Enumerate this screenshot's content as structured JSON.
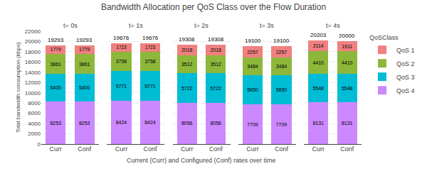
{
  "title": "Bandwidth Allocation per QoS Class over the Flow Duration",
  "xlabel": "Current (Curr) and Configured (Conf) rates over time",
  "ylabel": "Total bandwidth consumption (kbps)",
  "legend_title": "QoSClass",
  "legend": "right",
  "chart_data": [
    {
      "type": "bar",
      "title": "t= 0s",
      "categories": [
        "Curr",
        "Conf"
      ],
      "stacked": true,
      "data_labels": true,
      "grid": true,
      "ylim": [
        0,
        22000
      ],
      "yticks": [
        0,
        2000,
        4000,
        6000,
        8000,
        10000,
        12000,
        14000,
        16000,
        18000,
        20000,
        22000
      ],
      "series": [
        {
          "name": "QoS 1",
          "color": "#F08080",
          "values": [
            1779,
            1779
          ]
        },
        {
          "name": "QoS 2",
          "color": "#8DB73A",
          "values": [
            3861,
            3861
          ]
        },
        {
          "name": "QoS 3",
          "color": "#00BCD4",
          "values": [
            5400,
            5400
          ]
        },
        {
          "name": "QoS 4",
          "color": "#CC88FF",
          "values": [
            8253,
            8253
          ]
        }
      ],
      "totals": [
        19293,
        19293
      ]
    },
    {
      "type": "bar",
      "title": "t= 1s",
      "categories": [
        "Curr",
        "Conf"
      ],
      "stacked": true,
      "data_labels": true,
      "grid": true,
      "tick_labels": "x",
      "ylim": [
        0,
        22000
      ],
      "yticks": [
        0,
        2000,
        4000,
        6000,
        8000,
        10000,
        12000,
        14000,
        16000,
        18000,
        20000,
        22000
      ],
      "series": [
        {
          "name": "QoS 1",
          "color": "#F08080",
          "values": [
            1723,
            1723
          ]
        },
        {
          "name": "QoS 2",
          "color": "#8DB73A",
          "values": [
            3758,
            3758
          ]
        },
        {
          "name": "QoS 3",
          "color": "#00BCD4",
          "values": [
            5771,
            5771
          ]
        },
        {
          "name": "QoS 4",
          "color": "#CC88FF",
          "values": [
            8424,
            8424
          ]
        }
      ],
      "totals": [
        19676,
        19676
      ]
    },
    {
      "type": "bar",
      "title": "t= 2s",
      "categories": [
        "Curr",
        "Conf"
      ],
      "stacked": true,
      "data_labels": true,
      "grid": true,
      "tick_labels": "x",
      "ylim": [
        0,
        22000
      ],
      "yticks": [
        0,
        2000,
        4000,
        6000,
        8000,
        10000,
        12000,
        14000,
        16000,
        18000,
        20000,
        22000
      ],
      "series": [
        {
          "name": "QoS 1",
          "color": "#F08080",
          "values": [
            2018,
            2018
          ]
        },
        {
          "name": "QoS 2",
          "color": "#8DB73A",
          "values": [
            3512,
            3512
          ]
        },
        {
          "name": "QoS 3",
          "color": "#00BCD4",
          "values": [
            5722,
            5722
          ]
        },
        {
          "name": "QoS 4",
          "color": "#CC88FF",
          "values": [
            8056,
            8056
          ]
        }
      ],
      "totals": [
        19308,
        19308
      ]
    },
    {
      "type": "bar",
      "title": "t= 3s",
      "categories": [
        "Curr",
        "Conf"
      ],
      "stacked": true,
      "data_labels": true,
      "grid": true,
      "tick_labels": "x",
      "ylim": [
        0,
        22000
      ],
      "yticks": [
        0,
        2000,
        4000,
        6000,
        8000,
        10000,
        12000,
        14000,
        16000,
        18000,
        20000,
        22000
      ],
      "series": [
        {
          "name": "QoS 1",
          "color": "#F08080",
          "values": [
            2257,
            2257
          ]
        },
        {
          "name": "QoS 2",
          "color": "#8DB73A",
          "values": [
            3484,
            3484
          ]
        },
        {
          "name": "QoS 3",
          "color": "#00BCD4",
          "values": [
            5650,
            5650
          ]
        },
        {
          "name": "QoS 4",
          "color": "#CC88FF",
          "values": [
            7709,
            7709
          ]
        }
      ],
      "totals": [
        19100,
        19100
      ]
    },
    {
      "type": "bar",
      "title": "t= 4s",
      "categories": [
        "Curr",
        "Conf"
      ],
      "stacked": true,
      "data_labels": true,
      "grid": true,
      "tick_labels": "x",
      "ylim": [
        0,
        22000
      ],
      "yticks": [
        0,
        2000,
        4000,
        6000,
        8000,
        10000,
        12000,
        14000,
        16000,
        18000,
        20000,
        22000
      ],
      "series": [
        {
          "name": "QoS 1",
          "color": "#F08080",
          "values": [
            2114,
            1911
          ]
        },
        {
          "name": "QoS 2",
          "color": "#8DB73A",
          "values": [
            4410,
            4410
          ]
        },
        {
          "name": "QoS 3",
          "color": "#00BCD4",
          "values": [
            5548,
            5548
          ]
        },
        {
          "name": "QoS 4",
          "color": "#CC88FF",
          "values": [
            8131,
            8131
          ]
        }
      ],
      "totals": [
        20203,
        20000
      ]
    }
  ]
}
